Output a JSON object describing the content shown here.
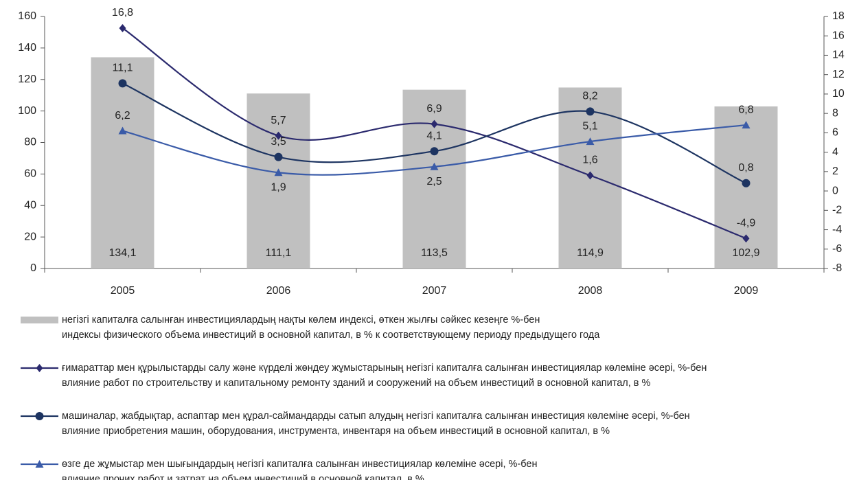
{
  "chart_data": {
    "type": "bar-line",
    "categories": [
      "2005",
      "2006",
      "2007",
      "2008",
      "2009"
    ],
    "ylim": [
      0,
      160
    ],
    "yticks": [
      0,
      20,
      40,
      60,
      80,
      100,
      120,
      140,
      160
    ],
    "y2lim": [
      -8,
      18
    ],
    "y2ticks": [
      -8,
      -6,
      -4,
      -2,
      0,
      2,
      4,
      6,
      8,
      10,
      12,
      14,
      16,
      18
    ],
    "series": [
      {
        "name": "негізгі капиталға салынған инвестициялардың нақты көлем индексі, өткен жылғы сәйкес кезеңге %-бен\nиндексы физического объема инвестиций в основной капитал, в % к соответствующему периоду предыдущего года",
        "type": "bar",
        "color": "#c0c0c0",
        "values": [
          134.1,
          111.1,
          113.5,
          114.9,
          102.9
        ],
        "value_labels": [
          "134,1",
          "111,1",
          "113,5",
          "114,9",
          "102,9"
        ]
      },
      {
        "name": "ғимараттар мен құрылыстарды салу және күрделі жөндеу жұмыстарының негізгі капиталға салынған инвестициялар көлеміне әсері, %-бен\nвлияние работ по строительству и капитальному ремонту зданий и сооружений на объем инвестиций в основной капитал, в %",
        "type": "line",
        "marker": "diamond",
        "axis": "y2",
        "color": "#2b2a6e",
        "values": [
          16.8,
          5.7,
          6.9,
          1.6,
          -4.9
        ],
        "value_labels": [
          "16,8",
          "5,7",
          "6,9",
          "1,6",
          "-4,9"
        ]
      },
      {
        "name": "машиналар, жабдықтар, аспаптар мен құрал-саймандарды сатып алудың негізгі капиталға салынған инвестиция көлеміне әсері, %-бен\nвлияние приобретения машин, оборудования, инструмента, инвентаря на объем инвестиций в основной капитал, в %",
        "type": "line",
        "marker": "circle",
        "axis": "y2",
        "color": "#1d3461",
        "values": [
          11.1,
          3.5,
          4.1,
          8.2,
          0.8
        ],
        "value_labels": [
          "11,1",
          "3,5",
          "4,1",
          "8,2",
          "0,8"
        ]
      },
      {
        "name": "өзге де жұмыстар мен шығындардың негізгі капиталға салынған инвестициялар көлеміне әсері, %-бен\nвлияние прочих работ и затрат на объем инвестиций в основной капитал, в %",
        "type": "line",
        "marker": "triangle",
        "axis": "y2",
        "color": "#3a5ba8",
        "values": [
          6.2,
          1.9,
          2.5,
          5.1,
          6.8
        ],
        "value_labels": [
          "6,2",
          "1,9",
          "2,5",
          "5,1",
          "6,8"
        ]
      }
    ]
  }
}
